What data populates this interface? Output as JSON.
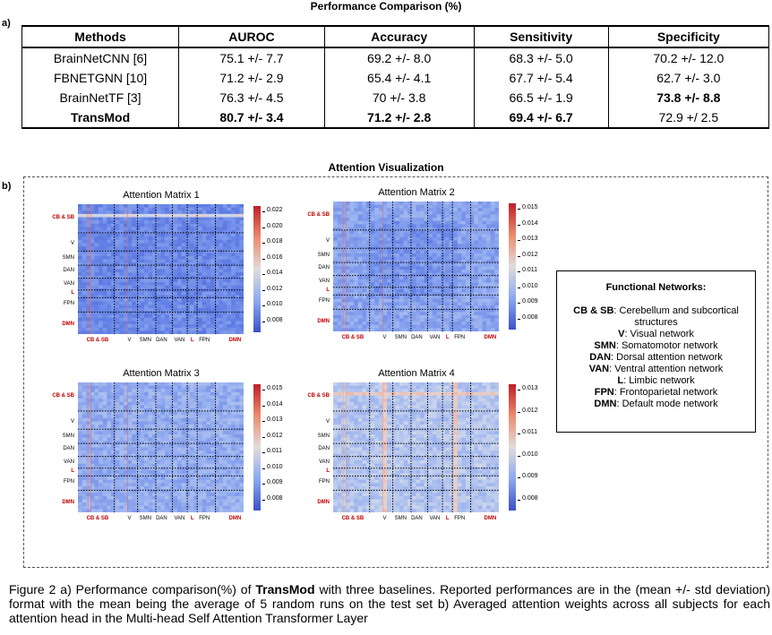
{
  "section_a_label": "a)",
  "section_b_label": "b)",
  "table_title": "Performance Comparison (%)",
  "table": {
    "headers": [
      "Methods",
      "AUROC",
      "Accuracy",
      "Sensitivity",
      "Specificity"
    ],
    "rows": [
      {
        "cells": [
          "BrainNetCNN [6]",
          "75.1 +/- 7.7",
          "69.2 +/- 8.0",
          "68.3 +/- 5.0",
          "70.2 +/- 12.0"
        ],
        "bold": [
          false,
          false,
          false,
          false,
          false
        ]
      },
      {
        "cells": [
          "FBNETGNN [10]",
          "71.2 +/- 2.9",
          "65.4 +/- 4.1",
          "67.7 +/- 5.4",
          "62.7 +/- 3.0"
        ],
        "bold": [
          false,
          false,
          false,
          false,
          false
        ]
      },
      {
        "cells": [
          "BrainNetTF [3]",
          "76.3 +/- 4.5",
          "70 +/- 3.8",
          "66.5 +/- 1.9",
          "73.8 +/- 8.8"
        ],
        "bold": [
          false,
          false,
          false,
          false,
          true
        ]
      },
      {
        "cells": [
          "TransMod",
          "80.7 +/- 3.4",
          "71.2 +/- 2.8",
          "69.4 +/- 6.7",
          "72.9 +/ 2.5"
        ],
        "bold": [
          true,
          true,
          true,
          true,
          false
        ]
      }
    ]
  },
  "vis_title": "Attention Visualization",
  "matrices": [
    {
      "title": "Attention Matrix 1",
      "ticks": [
        "0.022",
        "0.020",
        "0.018",
        "0.016",
        "0.014",
        "0.012",
        "0.010",
        "0.008"
      ]
    },
    {
      "title": "Attention Matrix 2",
      "ticks": [
        "0.015",
        "0.014",
        "0.013",
        "0.012",
        "0.011",
        "0.010",
        "0.009",
        "0.008"
      ]
    },
    {
      "title": "Attention Matrix 3",
      "ticks": [
        "0.015",
        "0.014",
        "0.013",
        "0.012",
        "0.011",
        "0.010",
        "0.009",
        "0.008"
      ]
    },
    {
      "title": "Attention Matrix 4",
      "ticks": [
        "0.013",
        "0.012",
        "0.011",
        "0.010",
        "0.009",
        "0.008"
      ]
    }
  ],
  "y_labels": [
    "CB & SB",
    "V",
    "SMN",
    "DAN",
    "VAN",
    "L",
    "FPN",
    "DMN"
  ],
  "x_labels": [
    "CB & SB",
    "V",
    "SMN",
    "DAN",
    "VAN",
    "L",
    "FPN",
    "DMN"
  ],
  "functional_networks": {
    "heading": "Functional Networks:",
    "items": [
      {
        "abbr": "CB & SB",
        "desc": ": Cerebellum and subcortical structures"
      },
      {
        "abbr": "V",
        "desc": ": Visual network"
      },
      {
        "abbr": "SMN",
        "desc": ": Somatomotor network"
      },
      {
        "abbr": "DAN",
        "desc": ": Dorsal attention network"
      },
      {
        "abbr": "VAN",
        "desc": ": Ventral attention network"
      },
      {
        "abbr": "L",
        "desc": ": Limbic network"
      },
      {
        "abbr": "FPN",
        "desc": ": Frontoparietal network"
      },
      {
        "abbr": "DMN",
        "desc": ": Default mode network"
      }
    ]
  },
  "caption": {
    "pre": "Figure 2 a) Performance comparison(%) of ",
    "bold": "TransMod",
    "post": " with three baselines. Reported performances are in the (mean +/- std deviation) format with the mean being the average of 5 random runs on the test set b) Averaged attention weights across all subjects for each attention head in the Multi-head Self Attention Transformer Layer"
  }
}
